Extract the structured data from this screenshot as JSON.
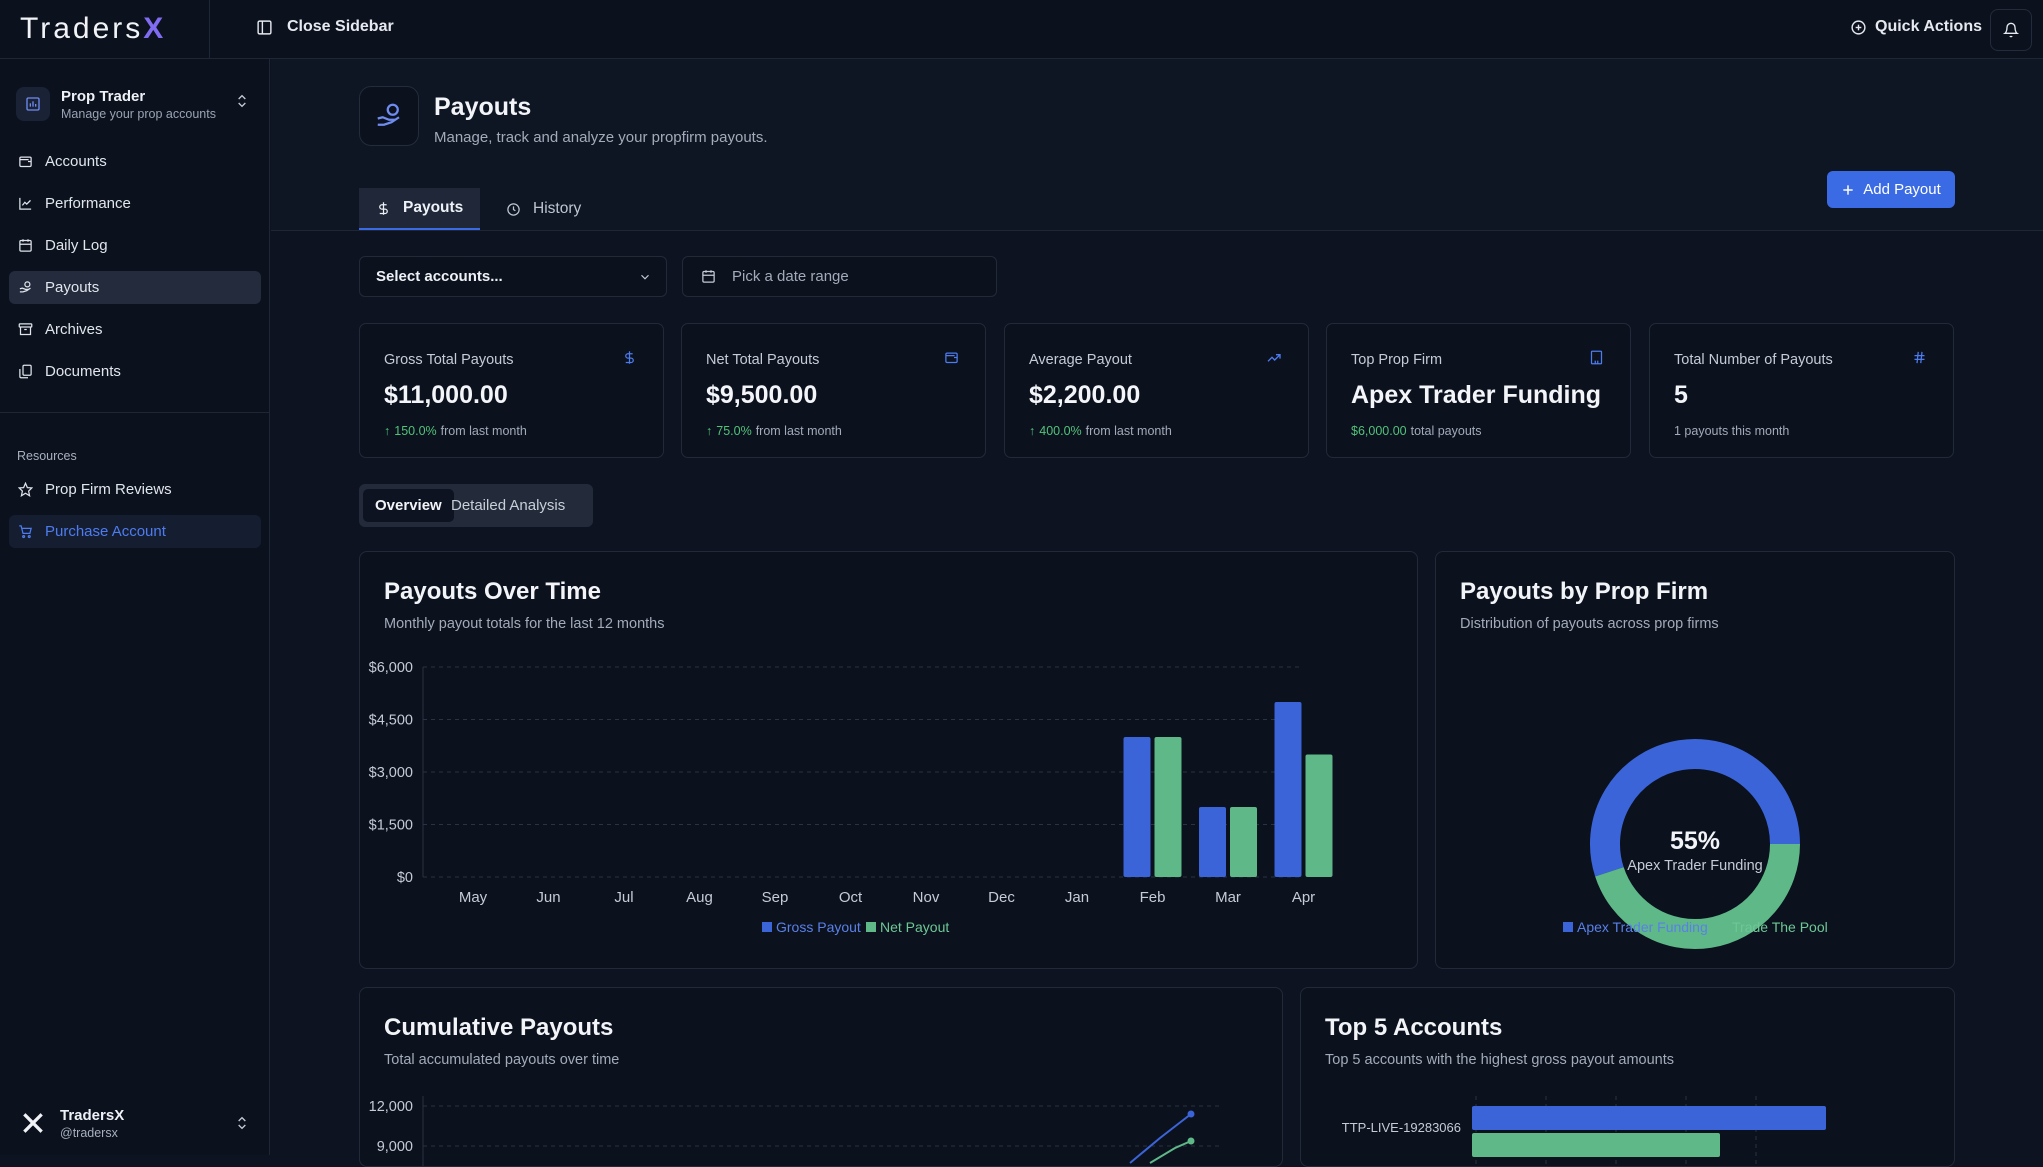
{
  "app": {
    "logo_main": "Traders",
    "logo_x": "X"
  },
  "topbar": {
    "close_sidebar": "Close Sidebar",
    "quick_actions": "Quick Actions"
  },
  "sidebar": {
    "account_title": "Prop Trader",
    "account_subtitle": "Manage your prop accounts",
    "items": [
      {
        "label": "Accounts",
        "icon": "wallet-icon"
      },
      {
        "label": "Performance",
        "icon": "line-chart-icon"
      },
      {
        "label": "Daily Log",
        "icon": "calendar-icon"
      },
      {
        "label": "Payouts",
        "icon": "hand-coins-icon"
      },
      {
        "label": "Archives",
        "icon": "archive-icon"
      },
      {
        "label": "Documents",
        "icon": "documents-icon"
      }
    ],
    "resources_label": "Resources",
    "resources": [
      {
        "label": "Prop Firm Reviews",
        "icon": "star-icon"
      },
      {
        "label": "Purchase Account",
        "icon": "cart-icon"
      }
    ],
    "user_name": "TradersX",
    "user_handle": "@tradersx"
  },
  "page": {
    "title": "Payouts",
    "subtitle": "Manage, track and analyze your propfirm payouts.",
    "add_button": "Add Payout",
    "tabs": [
      {
        "label": "Payouts"
      },
      {
        "label": "History"
      }
    ],
    "select_accounts": "Select accounts...",
    "date_range": "Pick a date range"
  },
  "stats": [
    {
      "label": "Gross Total Payouts",
      "value": "$11,000.00",
      "delta": "150.0%",
      "delta_suffix": "from last month"
    },
    {
      "label": "Net Total Payouts",
      "value": "$9,500.00",
      "delta": "75.0%",
      "delta_suffix": "from last month"
    },
    {
      "label": "Average Payout",
      "value": "$2,200.00",
      "delta": "400.0%",
      "delta_suffix": "from last month"
    },
    {
      "label": "Top Prop Firm",
      "value": "Apex Trader Funding",
      "delta": "$6,000.00",
      "delta_suffix": "total payouts"
    },
    {
      "label": "Total Number of Payouts",
      "value": "5",
      "delta": "",
      "delta_suffix": "1 payouts this month"
    }
  ],
  "segment": {
    "overview": "Overview",
    "detailed": "Detailed Analysis"
  },
  "cards": {
    "payouts_over_time": {
      "title": "Payouts Over Time",
      "subtitle": "Monthly payout totals for the last 12 months"
    },
    "by_prop_firm": {
      "title": "Payouts by Prop Firm",
      "subtitle": "Distribution of payouts across prop firms"
    },
    "cumulative": {
      "title": "Cumulative Payouts",
      "subtitle": "Total accumulated payouts over time"
    },
    "top5": {
      "title": "Top 5 Accounts",
      "subtitle": "Top 5 accounts with the highest gross payout amounts"
    }
  },
  "colors": {
    "blue": "#3b64d8",
    "green": "#5fb887",
    "accent": "#3a6be5"
  },
  "chart_data": [
    {
      "type": "bar",
      "title": "Payouts Over Time",
      "categories": [
        "May",
        "Jun",
        "Jul",
        "Aug",
        "Sep",
        "Oct",
        "Nov",
        "Dec",
        "Jan",
        "Feb",
        "Mar",
        "Apr"
      ],
      "series": [
        {
          "name": "Gross Payout",
          "values": [
            0,
            0,
            0,
            0,
            0,
            0,
            0,
            0,
            0,
            4000,
            2000,
            5000
          ]
        },
        {
          "name": "Net Payout",
          "values": [
            0,
            0,
            0,
            0,
            0,
            0,
            0,
            0,
            0,
            4000,
            2000,
            3500
          ]
        }
      ],
      "yticks": [
        "$0",
        "$1,500",
        "$3,000",
        "$4,500",
        "$6,000"
      ],
      "ylim": [
        0,
        6000
      ]
    },
    {
      "type": "pie",
      "title": "Payouts by Prop Firm",
      "labels": [
        "Apex Trader Funding",
        "Trade The Pool"
      ],
      "values": [
        55,
        45
      ],
      "center_value": "55%",
      "center_label": "Apex Trader Funding"
    },
    {
      "type": "line",
      "title": "Cumulative Payouts",
      "yticks": [
        "12,000",
        "9,000"
      ]
    },
    {
      "type": "bar",
      "title": "Top 5 Accounts",
      "categories": [
        "TTP-LIVE-19283066"
      ]
    }
  ]
}
